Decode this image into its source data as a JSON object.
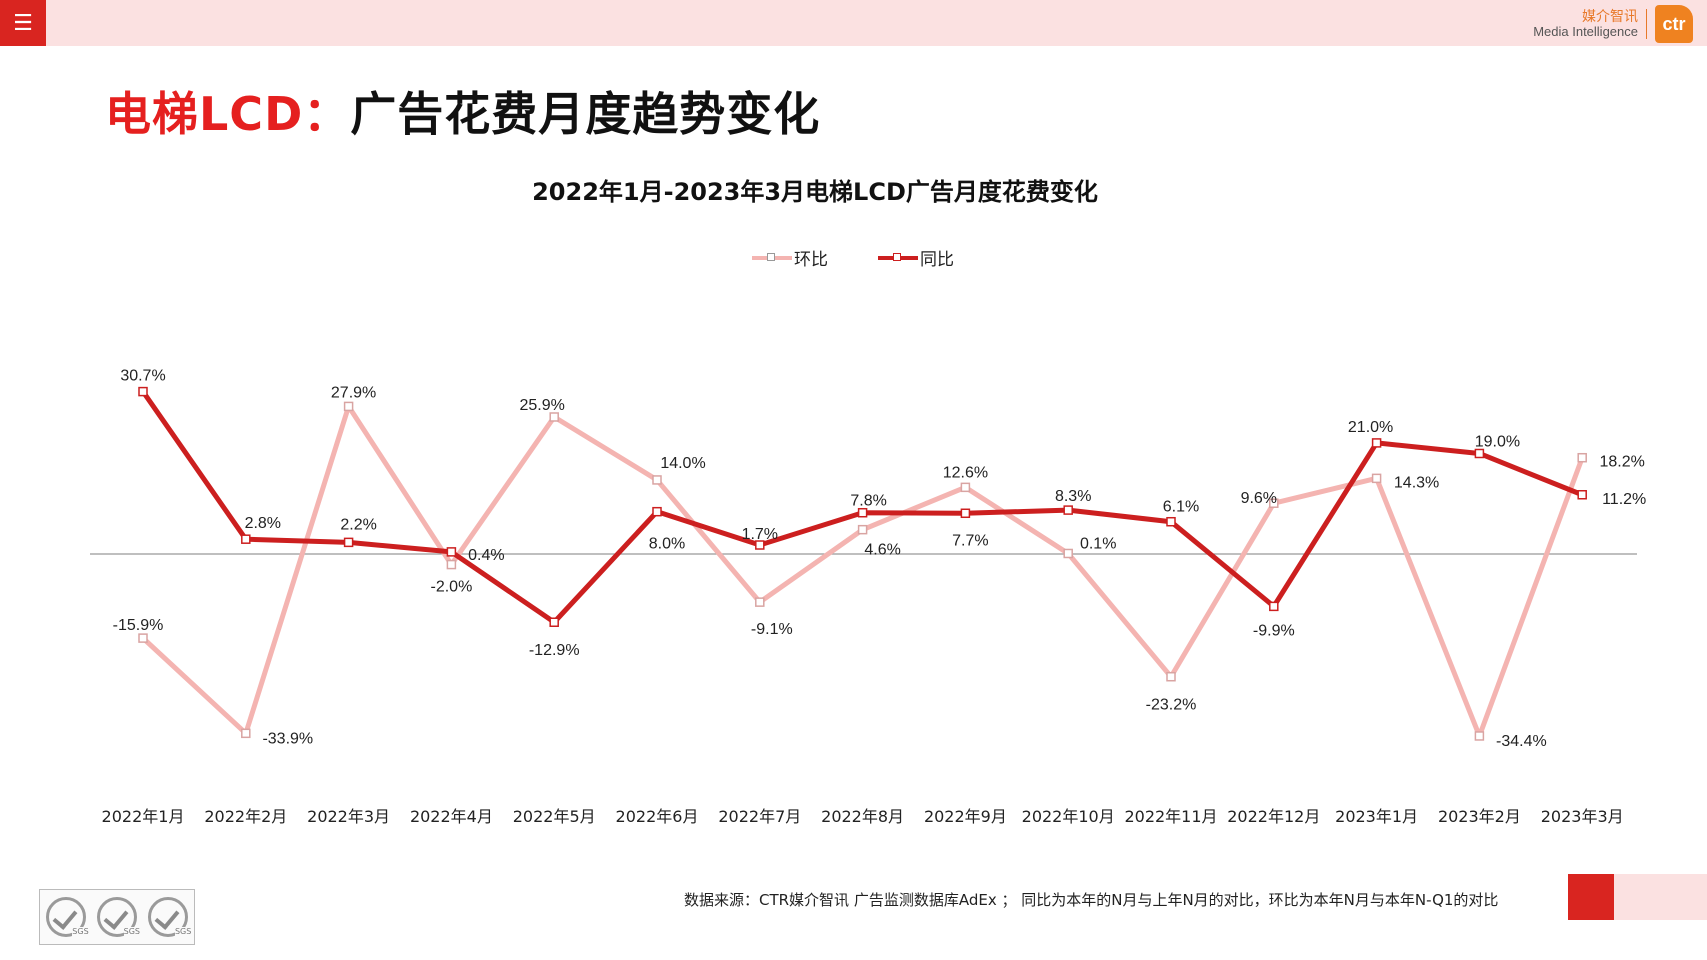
{
  "header": {
    "menu_icon": "hamburger-menu-icon",
    "brand_cn": "媒介智讯",
    "brand_en": "Media Intelligence",
    "brand_logo": "ctr"
  },
  "page": {
    "title_red": "电梯LCD：",
    "title_black": "广告花费月度趋势变化"
  },
  "colors": {
    "accent_red": "#d92520",
    "series_hb": "#f4b4b1",
    "series_tb": "#cc1f1f",
    "header_pink": "#fbe1e1"
  },
  "chart_data": {
    "type": "line",
    "title": "2022年1月-2023年3月电梯LCD广告月度花费变化",
    "categories": [
      "2022年1月",
      "2022年2月",
      "2022年3月",
      "2022年4月",
      "2022年5月",
      "2022年6月",
      "2022年7月",
      "2022年8月",
      "2022年9月",
      "2022年10月",
      "2022年11月",
      "2022年12月",
      "2023年1月",
      "2023年2月",
      "2023年3月"
    ],
    "series": [
      {
        "name": "环比",
        "values": [
          -15.9,
          -33.9,
          27.9,
          -2.0,
          25.9,
          14.0,
          -9.1,
          4.6,
          12.6,
          0.1,
          -23.2,
          9.6,
          14.3,
          -34.4,
          18.2
        ],
        "labels": [
          "-15.9%",
          "-33.9%",
          "27.9%",
          "-2.0%",
          "25.9%",
          "14.0%",
          "-9.1%",
          "4.6%",
          "12.6%",
          "0.1%",
          "-23.2%",
          "9.6%",
          "14.3%",
          "-34.4%",
          "18.2%"
        ]
      },
      {
        "name": "同比",
        "values": [
          30.7,
          2.8,
          2.2,
          0.4,
          -12.9,
          8.0,
          1.7,
          7.8,
          7.7,
          8.3,
          6.1,
          -9.9,
          21.0,
          19.0,
          11.2
        ],
        "labels": [
          "30.7%",
          "2.8%",
          "2.2%",
          "0.4%",
          "-12.9%",
          "8.0%",
          "1.7%",
          "7.8%",
          "7.7%",
          "8.3%",
          "6.1%",
          "-9.9%",
          "21.0%",
          "19.0%",
          "11.2%"
        ]
      }
    ],
    "legend": "top-center",
    "grid": false,
    "zero_line": true
  },
  "footer": {
    "note": "数据来源：CTR媒介智讯 广告监测数据库AdEx ； 同比为本年的N月与上年N月的对比，环比为本年N月与本年N-Q1的对比",
    "sgs_label": "SGS"
  }
}
